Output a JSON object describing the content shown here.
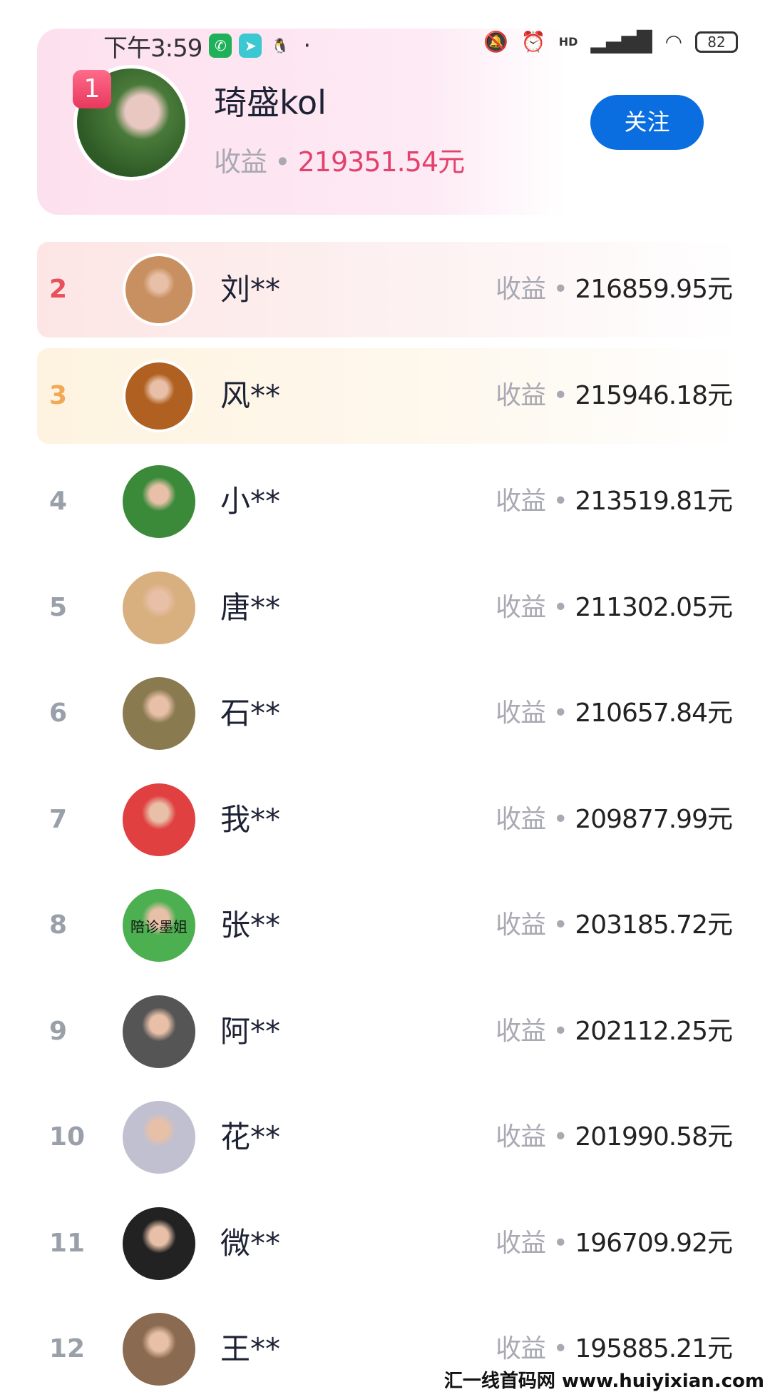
{
  "status_bar": {
    "time": "下午3:59",
    "battery": "82",
    "network": "HD"
  },
  "top": {
    "rank": "1",
    "name": "琦盛kol",
    "earn_label": "收益",
    "separator": "•",
    "amount": "219351.54元",
    "follow_label": "关注"
  },
  "list": [
    {
      "rank": "2",
      "name": "刘**",
      "earn_label": "收益",
      "amount": "216859.95元"
    },
    {
      "rank": "3",
      "name": "风**",
      "earn_label": "收益",
      "amount": "215946.18元"
    },
    {
      "rank": "4",
      "name": "小**",
      "earn_label": "收益",
      "amount": "213519.81元"
    },
    {
      "rank": "5",
      "name": "唐**",
      "earn_label": "收益",
      "amount": "211302.05元"
    },
    {
      "rank": "6",
      "name": "石**",
      "earn_label": "收益",
      "amount": "210657.84元"
    },
    {
      "rank": "7",
      "name": "我**",
      "earn_label": "收益",
      "amount": "209877.99元"
    },
    {
      "rank": "8",
      "name": "张**",
      "earn_label": "收益",
      "amount": "203185.72元",
      "avatar_text": "陪诊墨姐"
    },
    {
      "rank": "9",
      "name": "阿**",
      "earn_label": "收益",
      "amount": "202112.25元"
    },
    {
      "rank": "10",
      "name": "花**",
      "earn_label": "收益",
      "amount": "201990.58元"
    },
    {
      "rank": "11",
      "name": "微**",
      "earn_label": "收益",
      "amount": "196709.92元"
    },
    {
      "rank": "12",
      "name": "王**",
      "earn_label": "收益",
      "amount": "195885.21元"
    }
  ],
  "colors": {
    "rank2": "#e8505b",
    "rank3": "#f2a955",
    "accent": "#0a6ee0",
    "amount_top": "#e3426d"
  },
  "watermark": "汇一线首码网 www.huiyixian.com"
}
